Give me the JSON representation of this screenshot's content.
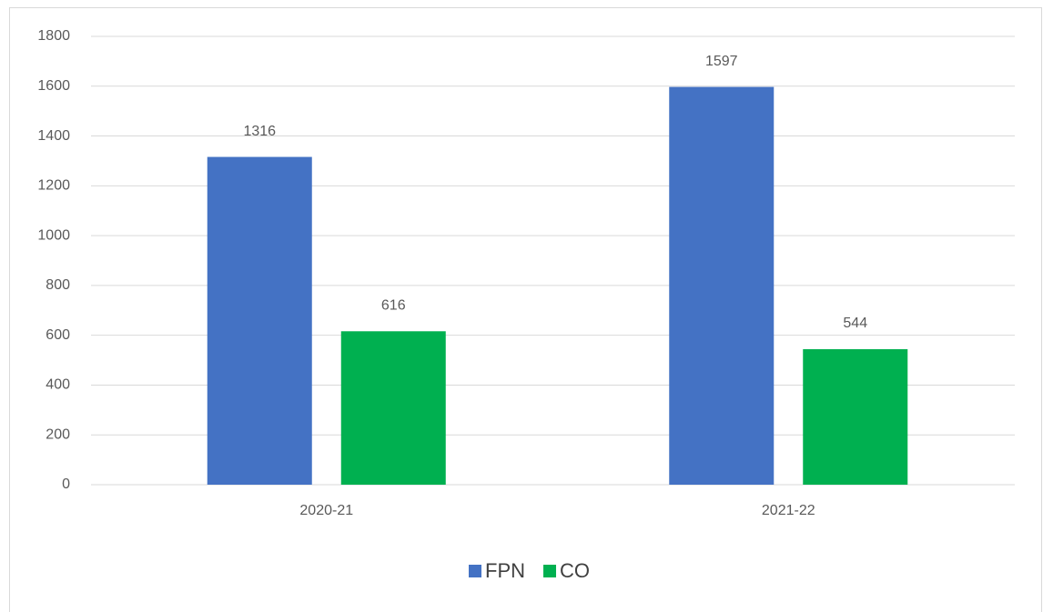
{
  "chart_data": {
    "type": "bar",
    "categories": [
      "2020-21",
      "2021-22"
    ],
    "series": [
      {
        "name": "FPN",
        "color": "#4472c4",
        "values": [
          1316,
          1597
        ]
      },
      {
        "name": "CO",
        "color": "#00b050",
        "values": [
          616,
          544
        ]
      }
    ],
    "ylim": [
      0,
      1800
    ],
    "yticks": [
      0,
      200,
      400,
      600,
      800,
      1000,
      1200,
      1400,
      1600,
      1800
    ],
    "grid": true,
    "legend": "bottom"
  }
}
